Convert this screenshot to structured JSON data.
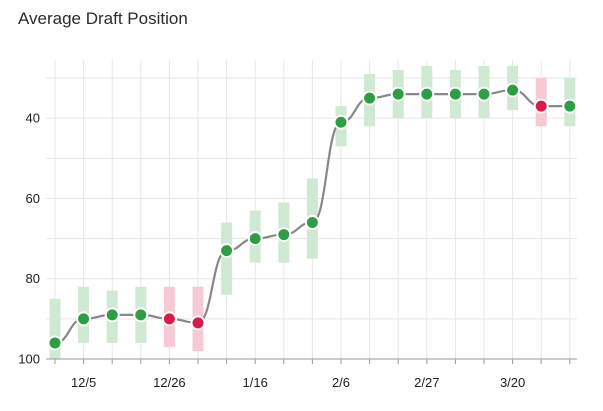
{
  "chart_data": {
    "type": "line",
    "title": "Average Draft Position",
    "xlabel": "",
    "ylabel": "",
    "y_reversed": true,
    "ylim": [
      100,
      27
    ],
    "y_ticks": [
      40,
      60,
      80,
      100
    ],
    "x_tick_labels": [
      "12/5",
      "12/26",
      "1/16",
      "2/6",
      "2/27",
      "3/20"
    ],
    "x_tick_indices": [
      1,
      4,
      7,
      10,
      13,
      16
    ],
    "grid": true,
    "series": [
      {
        "adp": [
          96,
          90,
          89,
          89,
          90,
          91,
          73,
          70,
          69,
          66,
          41,
          35,
          34,
          34,
          34,
          34,
          33,
          37,
          37
        ],
        "low": [
          85,
          82,
          83,
          82,
          82,
          82,
          66,
          63,
          61,
          55,
          37,
          29,
          28,
          27,
          28,
          27,
          27,
          30,
          30
        ],
        "high": [
          100,
          96,
          96,
          96,
          97,
          98,
          84,
          76,
          76,
          75,
          47,
          42,
          40,
          40,
          40,
          40,
          38,
          42,
          42
        ],
        "status": [
          "up",
          "up",
          "up",
          "up",
          "down",
          "down",
          "up",
          "up",
          "up",
          "up",
          "up",
          "up",
          "up",
          "up",
          "up",
          "up",
          "up",
          "down",
          "up"
        ]
      }
    ],
    "colors": {
      "up": "#2e9e44",
      "down": "#d81b4a",
      "up_range": "#cfe9d3",
      "down_range": "#f6c9d4",
      "line": "#888888",
      "grid": "#e6e6e6",
      "axis": "#999999"
    }
  }
}
